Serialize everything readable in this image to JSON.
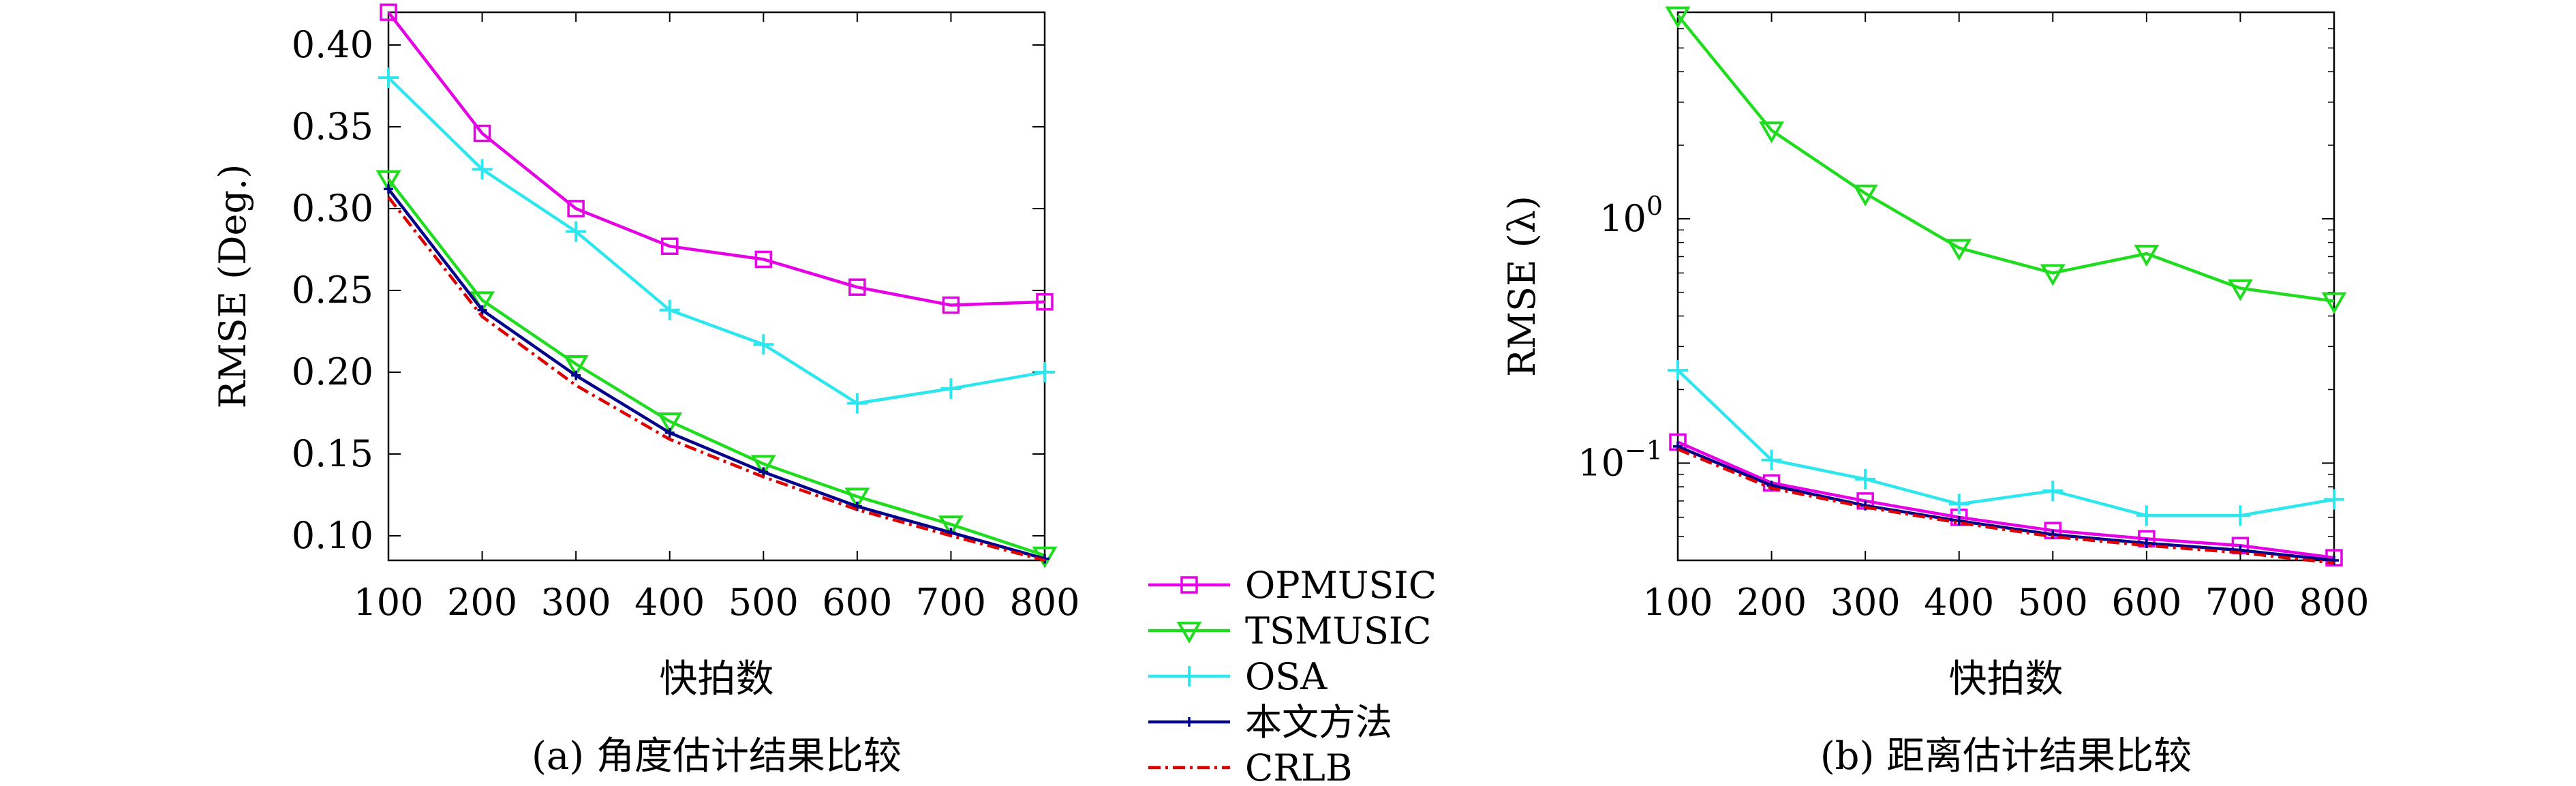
{
  "chart_data": [
    {
      "id": "a",
      "type": "line",
      "caption": "(a) 角度估计结果比较",
      "xlabel": "快拍数",
      "ylabel": "RMSE (Deg.)",
      "x": [
        100,
        200,
        300,
        400,
        500,
        600,
        700,
        800
      ],
      "xlim": [
        100,
        800
      ],
      "ylim": [
        0.085,
        0.42
      ],
      "yscale": "linear",
      "xticks": [
        "100",
        "200",
        "300",
        "400",
        "500",
        "600",
        "700",
        "800"
      ],
      "yticks": [
        {
          "value": 0.1,
          "label": "0.10"
        },
        {
          "value": 0.15,
          "label": "0.15"
        },
        {
          "value": 0.2,
          "label": "0.20"
        },
        {
          "value": 0.25,
          "label": "0.25"
        },
        {
          "value": 0.3,
          "label": "0.30"
        },
        {
          "value": 0.35,
          "label": "0.35"
        },
        {
          "value": 0.4,
          "label": "0.40"
        }
      ],
      "grid": false,
      "series": [
        {
          "name": "OPMUSIC",
          "color": "#e600e6",
          "marker": "square",
          "dash": "",
          "values": [
            0.42,
            0.346,
            0.3,
            0.277,
            0.269,
            0.252,
            0.241,
            0.243
          ]
        },
        {
          "name": "TSMUSIC",
          "color": "#1fdc1f",
          "marker": "triangle-down",
          "dash": "",
          "values": [
            0.318,
            0.244,
            0.205,
            0.17,
            0.144,
            0.124,
            0.107,
            0.088
          ]
        },
        {
          "name": "OSA",
          "color": "#2ee6ee",
          "marker": "plus",
          "dash": "",
          "values": [
            0.38,
            0.324,
            0.286,
            0.238,
            0.217,
            0.181,
            0.19,
            0.2
          ]
        },
        {
          "name": "本文方法",
          "color": "#00008b",
          "marker": "dot",
          "dash": "",
          "values": [
            0.312,
            0.238,
            0.198,
            0.163,
            0.139,
            0.118,
            0.102,
            0.086
          ]
        },
        {
          "name": "CRLB",
          "color": "#dd0000",
          "marker": "none",
          "dash": "18,7,4,7",
          "values": [
            0.307,
            0.234,
            0.192,
            0.159,
            0.136,
            0.116,
            0.1,
            0.085
          ]
        }
      ]
    },
    {
      "id": "b",
      "type": "line",
      "caption": "(b) 距离估计结果比较",
      "xlabel": "快拍数",
      "ylabel": "RMSE (λ)",
      "x": [
        100,
        200,
        300,
        400,
        500,
        600,
        700,
        800
      ],
      "xlim": [
        100,
        800
      ],
      "ylim": [
        0.04,
        7.0
      ],
      "yscale": "log",
      "xticks": [
        "100",
        "200",
        "300",
        "400",
        "500",
        "600",
        "700",
        "800"
      ],
      "yticks": [
        {
          "value": 0.1,
          "base": "10",
          "exp": "−1"
        },
        {
          "value": 1,
          "base": "10",
          "exp": "0"
        }
      ],
      "grid": false,
      "series": [
        {
          "name": "OPMUSIC",
          "color": "#e600e6",
          "marker": "square",
          "dash": "",
          "values": [
            0.122,
            0.083,
            0.07,
            0.06,
            0.053,
            0.049,
            0.046,
            0.041
          ]
        },
        {
          "name": "TSMUSIC",
          "color": "#1fdc1f",
          "marker": "triangle-down",
          "dash": "",
          "values": [
            6.8,
            2.3,
            1.27,
            0.76,
            0.6,
            0.72,
            0.52,
            0.46
          ]
        },
        {
          "name": "OSA",
          "color": "#2ee6ee",
          "marker": "plus",
          "dash": "",
          "values": [
            0.24,
            0.103,
            0.086,
            0.068,
            0.077,
            0.061,
            0.061,
            0.071
          ]
        },
        {
          "name": "本文方法",
          "color": "#00008b",
          "marker": "dot",
          "dash": "",
          "values": [
            0.117,
            0.081,
            0.067,
            0.058,
            0.051,
            0.047,
            0.044,
            0.04
          ]
        },
        {
          "name": "CRLB",
          "color": "#dd0000",
          "marker": "none",
          "dash": "18,7,4,7",
          "values": [
            0.114,
            0.079,
            0.066,
            0.057,
            0.05,
            0.046,
            0.043,
            0.039
          ]
        }
      ]
    }
  ],
  "legend": {
    "placement": "bottom-center",
    "entries": [
      {
        "name": "OPMUSIC",
        "color": "#e600e6",
        "marker": "square",
        "dash": ""
      },
      {
        "name": "TSMUSIC",
        "color": "#1fdc1f",
        "marker": "triangle-down",
        "dash": ""
      },
      {
        "name": "OSA",
        "color": "#2ee6ee",
        "marker": "plus",
        "dash": ""
      },
      {
        "name": "本文方法",
        "color": "#00008b",
        "marker": "dot",
        "dash": ""
      },
      {
        "name": "CRLB",
        "color": "#dd0000",
        "marker": "none",
        "dash": "18,7,4,7"
      }
    ]
  }
}
